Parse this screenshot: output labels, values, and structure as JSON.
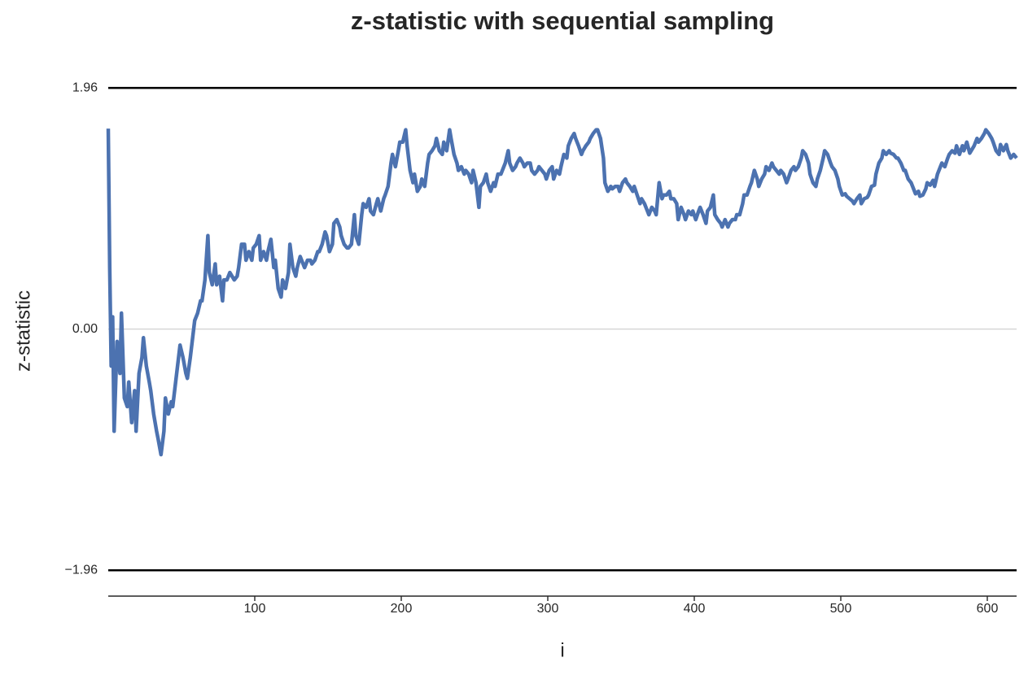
{
  "chart_data": {
    "type": "line",
    "title": "z-statistic with sequential sampling",
    "x_label": "i",
    "y_label": "z-statistic",
    "color": "#4c72b0",
    "hline_color": "#000000",
    "hlines": [
      -1.96,
      1.96
    ],
    "grid": true,
    "xlim": [
      0,
      620
    ],
    "xticks": [
      100,
      200,
      300,
      400,
      500,
      600
    ],
    "ylim": [
      -2.17,
      2.1
    ],
    "yticks": [
      {
        "value": -1.96,
        "label": "−1.96"
      },
      {
        "value": 0,
        "label": "0.00"
      },
      1.96
    ],
    "x": [
      0,
      1,
      2,
      3,
      4,
      6,
      8,
      9,
      11,
      13,
      14,
      16,
      18,
      19,
      21,
      23,
      24,
      26,
      28,
      29,
      31,
      33,
      34,
      36,
      38,
      39,
      41,
      43,
      44,
      46,
      48,
      49,
      51,
      53,
      54,
      56,
      58,
      59,
      61,
      63,
      64,
      66,
      68,
      69,
      71,
      73,
      74,
      76,
      78,
      79,
      81,
      83,
      84,
      86,
      88,
      89,
      91,
      93,
      94,
      96,
      98,
      99,
      101,
      103,
      104,
      106,
      108,
      109,
      111,
      113,
      114,
      116,
      118,
      119,
      121,
      123,
      124,
      126,
      128,
      129,
      131,
      133,
      134,
      136,
      138,
      139,
      141,
      143,
      144,
      146,
      148,
      149,
      151,
      153,
      154,
      156,
      158,
      159,
      161,
      163,
      164,
      166,
      168,
      169,
      171,
      173,
      174,
      176,
      178,
      179,
      181,
      183,
      184,
      186,
      188,
      189,
      191,
      193,
      194,
      196,
      198,
      199,
      201,
      203,
      204,
      206,
      208,
      209,
      211,
      213,
      214,
      216,
      218,
      219,
      221,
      223,
      224,
      226,
      228,
      229,
      231,
      233,
      234,
      236,
      238,
      239,
      241,
      243,
      244,
      246,
      248,
      249,
      251,
      253,
      254,
      256,
      258,
      259,
      261,
      263,
      264,
      266,
      268,
      269,
      271,
      273,
      274,
      276,
      278,
      279,
      281,
      283,
      284,
      286,
      288,
      289,
      291,
      293,
      294,
      296,
      298,
      299,
      301,
      303,
      304,
      306,
      308,
      309,
      311,
      313,
      314,
      316,
      318,
      319,
      321,
      323,
      324,
      326,
      328,
      329,
      331,
      333,
      334,
      336,
      338,
      339,
      341,
      343,
      344,
      346,
      348,
      349,
      351,
      353,
      354,
      356,
      358,
      359,
      361,
      363,
      364,
      366,
      368,
      369,
      371,
      373,
      374,
      376,
      378,
      379,
      381,
      383,
      384,
      386,
      388,
      389,
      391,
      393,
      394,
      396,
      398,
      399,
      401,
      403,
      404,
      406,
      408,
      409,
      411,
      413,
      414,
      416,
      418,
      419,
      421,
      423,
      424,
      426,
      428,
      429,
      431,
      433,
      434,
      436,
      438,
      439,
      441,
      443,
      444,
      446,
      448,
      449,
      451,
      453,
      454,
      456,
      458,
      459,
      461,
      463,
      464,
      466,
      468,
      469,
      471,
      473,
      474,
      476,
      478,
      479,
      481,
      483,
      484,
      486,
      488,
      489,
      491,
      493,
      494,
      496,
      498,
      499,
      501,
      503,
      504,
      506,
      508,
      509,
      511,
      513,
      514,
      516,
      518,
      519,
      521,
      523,
      524,
      526,
      528,
      529,
      531,
      533,
      534,
      536,
      538,
      539,
      541,
      543,
      544,
      546,
      548,
      549,
      551,
      553,
      554,
      556,
      558,
      559,
      561,
      563,
      564,
      566,
      568,
      569,
      571,
      573,
      574,
      576,
      578,
      579,
      581,
      583,
      584,
      586,
      588,
      589,
      591,
      593,
      594,
      596,
      598,
      599,
      601,
      603,
      604,
      606,
      608,
      609,
      611,
      613,
      614,
      616,
      618,
      620
    ],
    "values": [
      1.63,
      0.5,
      -0.3,
      0.1,
      -0.83,
      -0.1,
      -0.36,
      0.13,
      -0.56,
      -0.63,
      -0.43,
      -0.76,
      -0.5,
      -0.83,
      -0.36,
      -0.23,
      -0.07,
      -0.3,
      -0.43,
      -0.5,
      -0.69,
      -0.83,
      -0.89,
      -1.02,
      -0.83,
      -0.56,
      -0.69,
      -0.59,
      -0.63,
      -0.43,
      -0.23,
      -0.13,
      -0.23,
      -0.36,
      -0.4,
      -0.23,
      -0.03,
      0.07,
      0.13,
      0.23,
      0.23,
      0.4,
      0.76,
      0.46,
      0.36,
      0.53,
      0.36,
      0.43,
      0.23,
      0.4,
      0.4,
      0.46,
      0.44,
      0.4,
      0.43,
      0.5,
      0.69,
      0.69,
      0.56,
      0.63,
      0.56,
      0.66,
      0.69,
      0.76,
      0.56,
      0.63,
      0.56,
      0.63,
      0.73,
      0.5,
      0.56,
      0.33,
      0.26,
      0.4,
      0.33,
      0.46,
      0.69,
      0.5,
      0.43,
      0.5,
      0.59,
      0.53,
      0.5,
      0.56,
      0.56,
      0.53,
      0.56,
      0.63,
      0.63,
      0.69,
      0.79,
      0.76,
      0.63,
      0.69,
      0.86,
      0.89,
      0.83,
      0.76,
      0.69,
      0.66,
      0.66,
      0.69,
      0.93,
      0.76,
      0.69,
      0.93,
      1.02,
      0.99,
      1.06,
      0.96,
      0.93,
      1.02,
      1.06,
      0.96,
      1.06,
      1.09,
      1.16,
      1.35,
      1.42,
      1.32,
      1.45,
      1.52,
      1.52,
      1.62,
      1.49,
      1.29,
      1.19,
      1.26,
      1.12,
      1.16,
      1.22,
      1.16,
      1.35,
      1.42,
      1.45,
      1.49,
      1.55,
      1.45,
      1.42,
      1.52,
      1.45,
      1.62,
      1.55,
      1.42,
      1.35,
      1.29,
      1.32,
      1.26,
      1.29,
      1.26,
      1.19,
      1.29,
      1.19,
      0.99,
      1.16,
      1.19,
      1.26,
      1.19,
      1.12,
      1.19,
      1.16,
      1.26,
      1.26,
      1.29,
      1.35,
      1.45,
      1.35,
      1.29,
      1.32,
      1.35,
      1.39,
      1.35,
      1.32,
      1.35,
      1.35,
      1.29,
      1.26,
      1.29,
      1.32,
      1.29,
      1.26,
      1.22,
      1.29,
      1.32,
      1.22,
      1.29,
      1.26,
      1.32,
      1.42,
      1.39,
      1.49,
      1.55,
      1.59,
      1.55,
      1.49,
      1.42,
      1.45,
      1.49,
      1.52,
      1.55,
      1.59,
      1.62,
      1.62,
      1.55,
      1.39,
      1.19,
      1.12,
      1.16,
      1.14,
      1.16,
      1.16,
      1.12,
      1.19,
      1.22,
      1.19,
      1.16,
      1.12,
      1.16,
      1.09,
      1.02,
      1.06,
      1.02,
      0.96,
      0.93,
      0.99,
      0.96,
      0.93,
      1.19,
      1.06,
      1.09,
      1.09,
      1.12,
      1.06,
      1.06,
      1.02,
      0.89,
      0.99,
      0.93,
      0.89,
      0.96,
      0.93,
      0.96,
      0.89,
      0.96,
      0.99,
      0.93,
      0.86,
      0.96,
      0.99,
      1.09,
      0.93,
      0.89,
      0.86,
      0.83,
      0.89,
      0.83,
      0.86,
      0.89,
      0.89,
      0.93,
      0.93,
      1.02,
      1.09,
      1.09,
      1.16,
      1.19,
      1.29,
      1.22,
      1.16,
      1.22,
      1.26,
      1.32,
      1.29,
      1.35,
      1.32,
      1.29,
      1.26,
      1.29,
      1.26,
      1.19,
      1.22,
      1.29,
      1.32,
      1.29,
      1.32,
      1.39,
      1.45,
      1.42,
      1.35,
      1.26,
      1.19,
      1.16,
      1.22,
      1.29,
      1.39,
      1.45,
      1.42,
      1.35,
      1.32,
      1.29,
      1.22,
      1.16,
      1.09,
      1.1,
      1.08,
      1.06,
      1.04,
      1.02,
      1.06,
      1.09,
      1.02,
      1.06,
      1.07,
      1.09,
      1.16,
      1.17,
      1.26,
      1.35,
      1.39,
      1.45,
      1.42,
      1.45,
      1.43,
      1.42,
      1.39,
      1.39,
      1.35,
      1.29,
      1.29,
      1.22,
      1.19,
      1.16,
      1.1,
      1.12,
      1.08,
      1.09,
      1.14,
      1.19,
      1.17,
      1.21,
      1.16,
      1.26,
      1.32,
      1.35,
      1.32,
      1.39,
      1.42,
      1.45,
      1.43,
      1.49,
      1.42,
      1.49,
      1.45,
      1.52,
      1.43,
      1.45,
      1.49,
      1.55,
      1.52,
      1.55,
      1.59,
      1.62,
      1.59,
      1.55,
      1.52,
      1.45,
      1.42,
      1.5,
      1.45,
      1.5,
      1.45,
      1.39,
      1.42,
      1.39
    ]
  }
}
